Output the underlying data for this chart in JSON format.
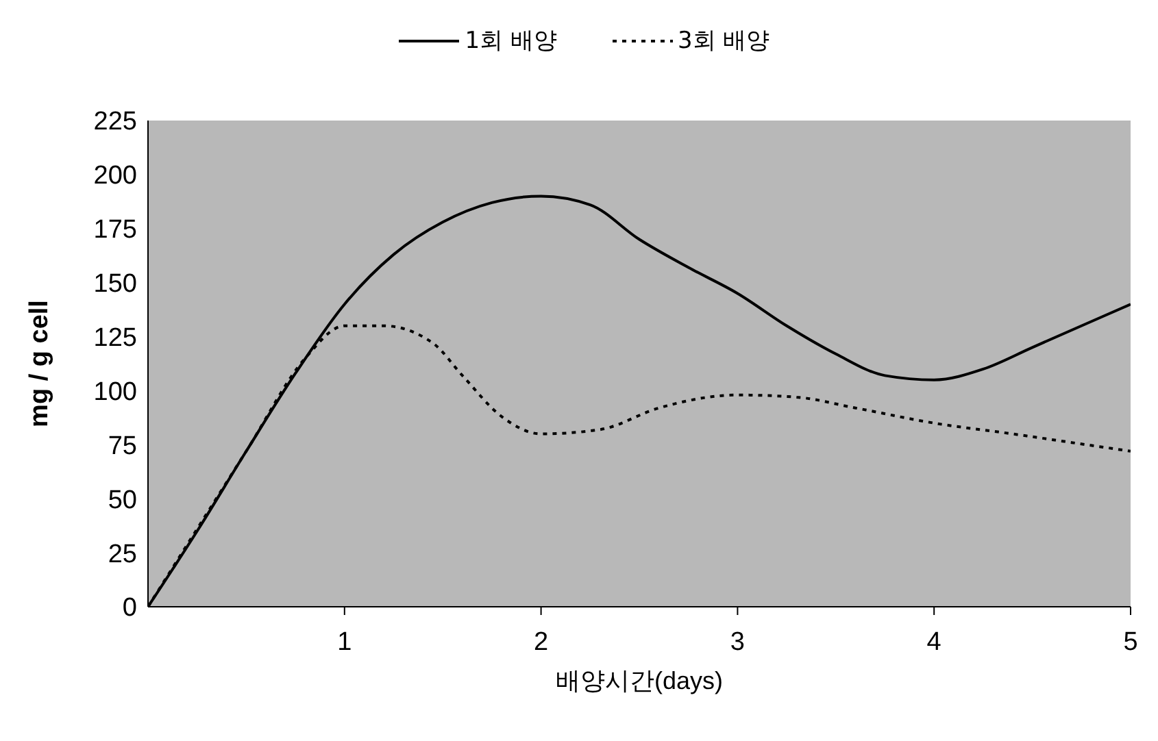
{
  "chart_data": {
    "type": "line",
    "xlabel": "배양시간(days)",
    "ylabel": "mg / g cell",
    "xlim": [
      0,
      5
    ],
    "xticks": [
      1,
      2,
      3,
      4,
      5
    ],
    "ylim": [
      0,
      225
    ],
    "yticks": [
      0,
      25,
      50,
      75,
      100,
      125,
      150,
      175,
      200,
      225
    ],
    "grid": false,
    "legend": "top",
    "marker": "none",
    "series": [
      {
        "name": "1회 배양",
        "color": "#000000",
        "line_style": "solid",
        "x": [
          0,
          0.25,
          0.5,
          0.75,
          1,
          1.25,
          1.5,
          1.75,
          2,
          2.25,
          2.5,
          2.75,
          3,
          3.25,
          3.5,
          3.75,
          4,
          4.25,
          4.5,
          4.75,
          5
        ],
        "values": [
          0,
          35,
          72,
          108,
          140,
          163,
          178,
          187,
          190,
          186,
          170,
          157,
          145,
          130,
          117,
          107,
          105,
          110,
          120,
          130,
          140
        ]
      },
      {
        "name": "3회 배양",
        "color": "#000000",
        "line_style": "dotted",
        "x": [
          0,
          0.5,
          0.8,
          1,
          1.2,
          1.45,
          1.6,
          1.8,
          2,
          2.3,
          2.6,
          3,
          3.3,
          3.6,
          4,
          4.4,
          4.7,
          5
        ],
        "values": [
          0,
          72,
          115,
          130,
          130,
          122,
          107,
          88,
          80,
          82,
          92,
          98,
          97,
          92,
          85,
          80,
          76,
          72
        ]
      }
    ]
  }
}
